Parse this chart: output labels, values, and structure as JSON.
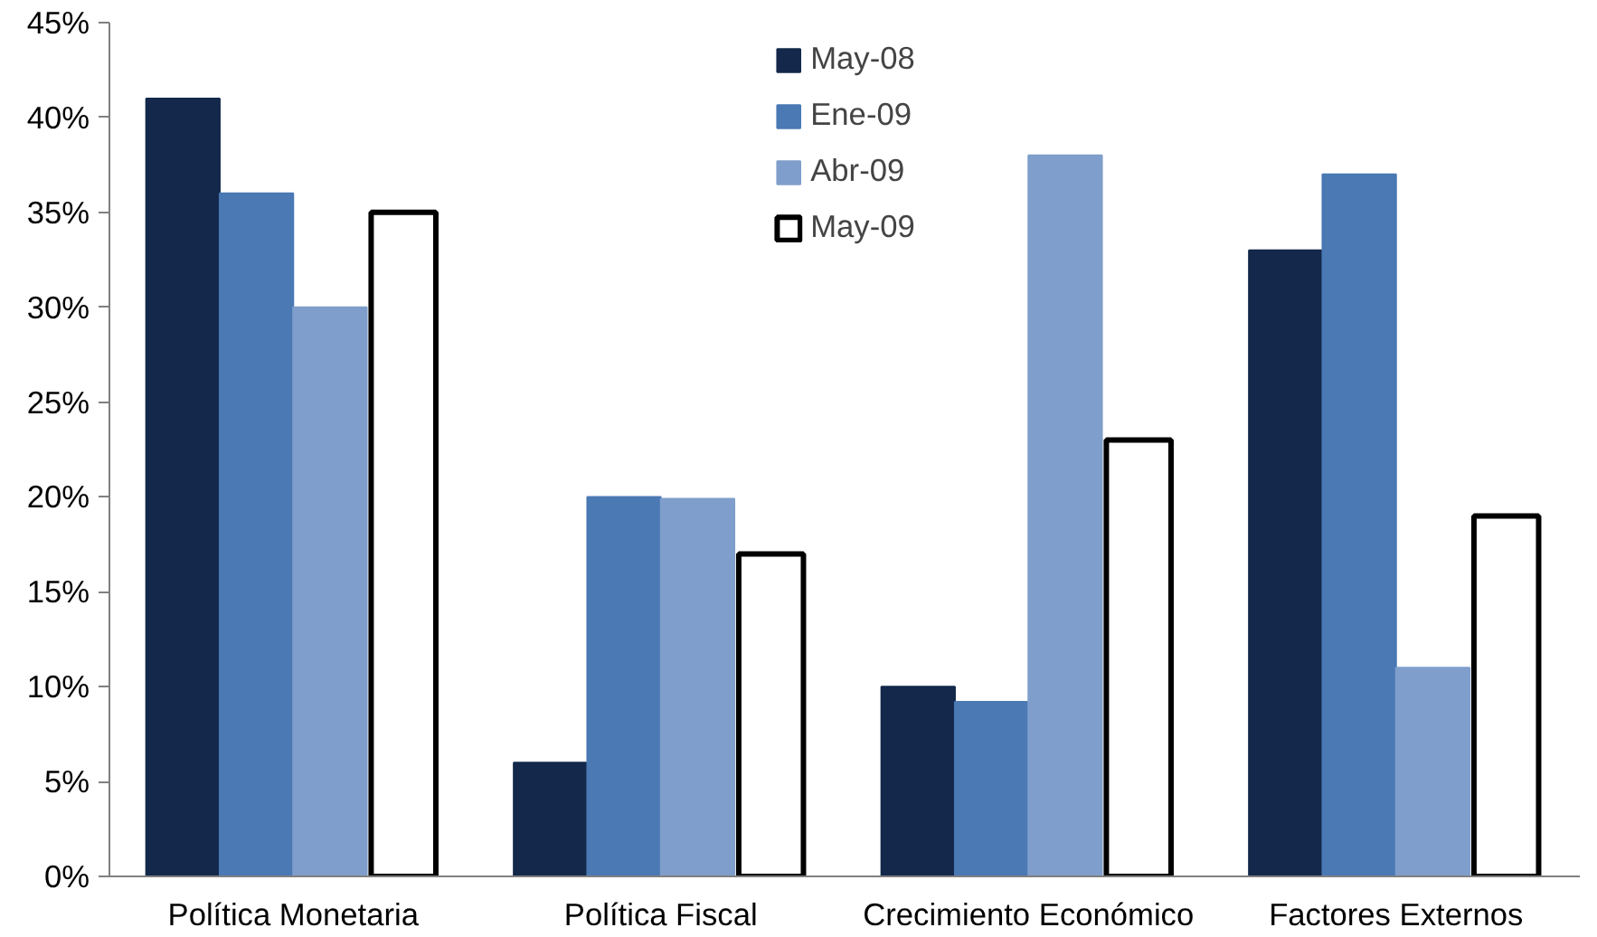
{
  "chart_data": {
    "type": "bar",
    "categories": [
      "Política Monetaria",
      "Política Fiscal",
      "Crecimiento Económico",
      "Factores Externos"
    ],
    "series": [
      {
        "name": "May-08",
        "color": "#13284a",
        "values": [
          41,
          6,
          10,
          33
        ]
      },
      {
        "name": "Ene-09",
        "color": "#4a79b4",
        "values": [
          36,
          20,
          9.2,
          37
        ]
      },
      {
        "name": "Abr-09",
        "color": "#7f9ecb",
        "values": [
          30,
          19.9,
          38,
          11
        ]
      },
      {
        "name": "May-09",
        "color": "#ffffff",
        "values": [
          35,
          17,
          23,
          19
        ]
      }
    ],
    "ylim": [
      0,
      45
    ],
    "yticks": [
      {
        "value": 0,
        "label": "0%"
      },
      {
        "value": 5,
        "label": "5%"
      },
      {
        "value": 10,
        "label": "10%"
      },
      {
        "value": 15,
        "label": "15%"
      },
      {
        "value": 20,
        "label": "20%"
      },
      {
        "value": 25,
        "label": "25%"
      },
      {
        "value": 30,
        "label": "30%"
      },
      {
        "value": 35,
        "label": "35%"
      },
      {
        "value": 40,
        "label": "40%"
      },
      {
        "value": 45,
        "label": "45%"
      }
    ],
    "grid": false,
    "legend": "top"
  }
}
